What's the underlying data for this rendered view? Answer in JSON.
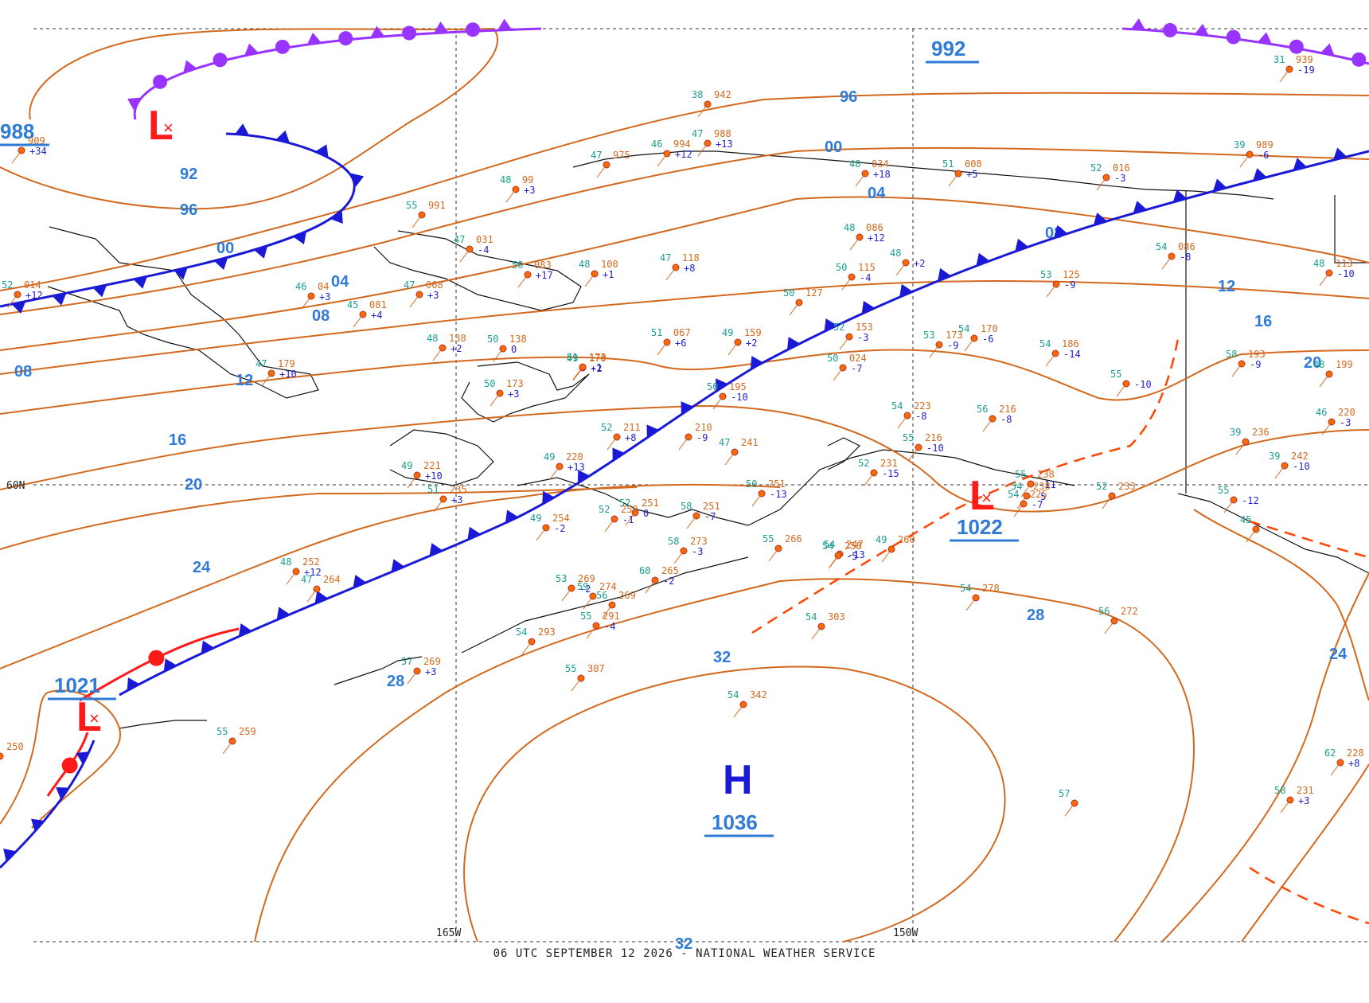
{
  "footer": "06 UTC SEPTEMBER 12 2026 - NATIONAL WEATHER SERVICE",
  "colors": {
    "isobar": "#d2691e",
    "isobar_label": "#2f7bd6",
    "cold_front": "#1a1ad6",
    "warm_front": "#ff1a1a",
    "occluded_front": "#9933ff",
    "trough": "#ff4500"
  },
  "grid_labels": {
    "lat_60": "60N",
    "lon_165": "165W",
    "lon_150": "150W"
  },
  "isobar_labels": [
    "96",
    "00",
    "04",
    "08",
    "12",
    "16",
    "20",
    "24",
    "28",
    "32",
    "92",
    "96",
    "00",
    "04",
    "08",
    "08",
    "12",
    "16",
    "20",
    "24",
    "28",
    "32"
  ],
  "centers": [
    {
      "type": "L",
      "pressure": "988"
    },
    {
      "type": "L",
      "pressure": "1021"
    },
    {
      "type": "L",
      "pressure": "1022"
    },
    {
      "type": "H",
      "pressure": "1036"
    },
    {
      "type": "",
      "pressure": "992"
    }
  ],
  "observations": [
    {
      "t": "55",
      "p": "991",
      "c": ""
    },
    {
      "t": "47",
      "p": "031",
      "c": "-4"
    },
    {
      "t": "48",
      "p": "99",
      "c": "+3"
    },
    {
      "t": "47",
      "p": "975",
      "c": ""
    },
    {
      "t": "46",
      "p": "994",
      "c": "+12"
    },
    {
      "t": "38",
      "p": "942",
      "c": ""
    },
    {
      "t": "47",
      "p": "988",
      "c": "+13"
    },
    {
      "t": "48",
      "p": "034",
      "c": "+18"
    },
    {
      "t": "51",
      "p": "008",
      "c": "+5"
    },
    {
      "t": "52",
      "p": "016",
      "c": "-3"
    },
    {
      "t": "39",
      "p": "989",
      "c": "-6"
    },
    {
      "t": "31",
      "p": "939",
      "c": "-19"
    },
    {
      "t": "48",
      "p": "086",
      "c": "+12"
    },
    {
      "t": "48",
      "p": "",
      "c": "+2"
    },
    {
      "t": "50",
      "p": "115",
      "c": "-4"
    },
    {
      "t": "54",
      "p": "086",
      "c": "-8"
    },
    {
      "t": "53",
      "p": "125",
      "c": "-9"
    },
    {
      "t": "48",
      "p": "113",
      "c": "-10"
    },
    {
      "t": "47",
      "p": "118",
      "c": "+8"
    },
    {
      "t": "48",
      "p": "100",
      "c": "+1"
    },
    {
      "t": "50",
      "p": "083",
      "c": "+17"
    },
    {
      "t": "47",
      "p": "068",
      "c": "+3"
    },
    {
      "t": "46",
      "p": "04",
      "c": "+3"
    },
    {
      "t": "45",
      "p": "081",
      "c": "+4"
    },
    {
      "t": "52",
      "p": "014",
      "c": "+12"
    },
    {
      "t": "50",
      "p": "127",
      "c": ""
    },
    {
      "t": "52",
      "p": "153",
      "c": "-3"
    },
    {
      "t": "53",
      "p": "173",
      "c": "-9"
    },
    {
      "t": "54",
      "p": "170",
      "c": "-6"
    },
    {
      "t": "54",
      "p": "186",
      "c": "-14"
    },
    {
      "t": "58",
      "p": "193",
      "c": "-9"
    },
    {
      "t": "48",
      "p": "199",
      "c": ""
    },
    {
      "t": "51",
      "p": "067",
      "c": "+6"
    },
    {
      "t": "49",
      "p": "159",
      "c": "+2"
    },
    {
      "t": "50",
      "p": "024",
      "c": "-7"
    },
    {
      "t": "48",
      "p": "138",
      "c": "+2"
    },
    {
      "t": "50",
      "p": "138",
      "c": "0"
    },
    {
      "t": "49",
      "p": "170",
      "c": "+2"
    },
    {
      "t": "51",
      "p": "173",
      "c": "-1"
    },
    {
      "t": "50",
      "p": "173",
      "c": "+3"
    },
    {
      "t": "50",
      "p": "195",
      "c": "-10"
    },
    {
      "t": "55",
      "p": "",
      "c": "-10"
    },
    {
      "t": "47",
      "p": "179",
      "c": "+10"
    },
    {
      "t": "54",
      "p": "223",
      "c": "-8"
    },
    {
      "t": "56",
      "p": "216",
      "c": "-8"
    },
    {
      "t": "46",
      "p": "220",
      "c": "-3"
    },
    {
      "t": "39",
      "p": "236",
      "c": ""
    },
    {
      "t": "39",
      "p": "242",
      "c": "-10"
    },
    {
      "t": "52",
      "p": "211",
      "c": "+8"
    },
    {
      "t": "",
      "p": "210",
      "c": "-9"
    },
    {
      "t": "47",
      "p": "241",
      "c": ""
    },
    {
      "t": "49",
      "p": "220",
      "c": "+13"
    },
    {
      "t": "49",
      "p": "221",
      "c": "+10"
    },
    {
      "t": "51",
      "p": "235",
      "c": "+3"
    },
    {
      "t": "50",
      "p": "251",
      "c": "-13"
    },
    {
      "t": "55",
      "p": "216",
      "c": "-10"
    },
    {
      "t": "52",
      "p": "231",
      "c": "-15"
    },
    {
      "t": "55",
      "p": "238",
      "c": "-11"
    },
    {
      "t": "54",
      "p": "238",
      "c": "-5"
    },
    {
      "t": "54",
      "p": "225",
      "c": "-7"
    },
    {
      "t": "55",
      "p": "",
      "c": "-12"
    },
    {
      "t": "52",
      "p": "233",
      "c": ""
    },
    {
      "t": "52",
      "p": "251",
      "c": "0"
    },
    {
      "t": "58",
      "p": "251",
      "c": "-7"
    },
    {
      "t": "52",
      "p": "250",
      "c": "-1"
    },
    {
      "t": "49",
      "p": "254",
      "c": "-2"
    },
    {
      "t": "55",
      "p": "266",
      "c": ""
    },
    {
      "t": "54",
      "p": "247",
      "c": "-13"
    },
    {
      "t": "54",
      "p": "258",
      "c": "-5"
    },
    {
      "t": "49",
      "p": "260",
      "c": ""
    },
    {
      "t": "58",
      "p": "273",
      "c": "-3"
    },
    {
      "t": "60",
      "p": "265",
      "c": "-2"
    },
    {
      "t": "53",
      "p": "269",
      "c": "-2"
    },
    {
      "t": "56",
      "p": "269",
      "c": ""
    },
    {
      "t": "48",
      "p": "252",
      "c": "+12"
    },
    {
      "t": "47",
      "p": "264",
      "c": ""
    },
    {
      "t": "59",
      "p": "274",
      "c": ""
    },
    {
      "t": "55",
      "p": "291",
      "c": "-4"
    },
    {
      "t": "54",
      "p": "293",
      "c": ""
    },
    {
      "t": "54",
      "p": "278",
      "c": ""
    },
    {
      "t": "56",
      "p": "272",
      "c": ""
    },
    {
      "t": "54",
      "p": "303",
      "c": ""
    },
    {
      "t": "57",
      "p": "269",
      "c": "+3"
    },
    {
      "t": "55",
      "p": "307",
      "c": ""
    },
    {
      "t": "54",
      "p": "342",
      "c": ""
    },
    {
      "t": "55",
      "p": "259",
      "c": ""
    },
    {
      "t": "",
      "p": "250",
      "c": ""
    },
    {
      "t": "62",
      "p": "228",
      "c": "+8"
    },
    {
      "t": "58",
      "p": "231",
      "c": "+3"
    },
    {
      "t": "57",
      "p": "",
      "c": ""
    },
    {
      "t": "45",
      "p": "",
      "c": ""
    },
    {
      "t": "",
      "p": "909",
      "c": "+34"
    }
  ]
}
